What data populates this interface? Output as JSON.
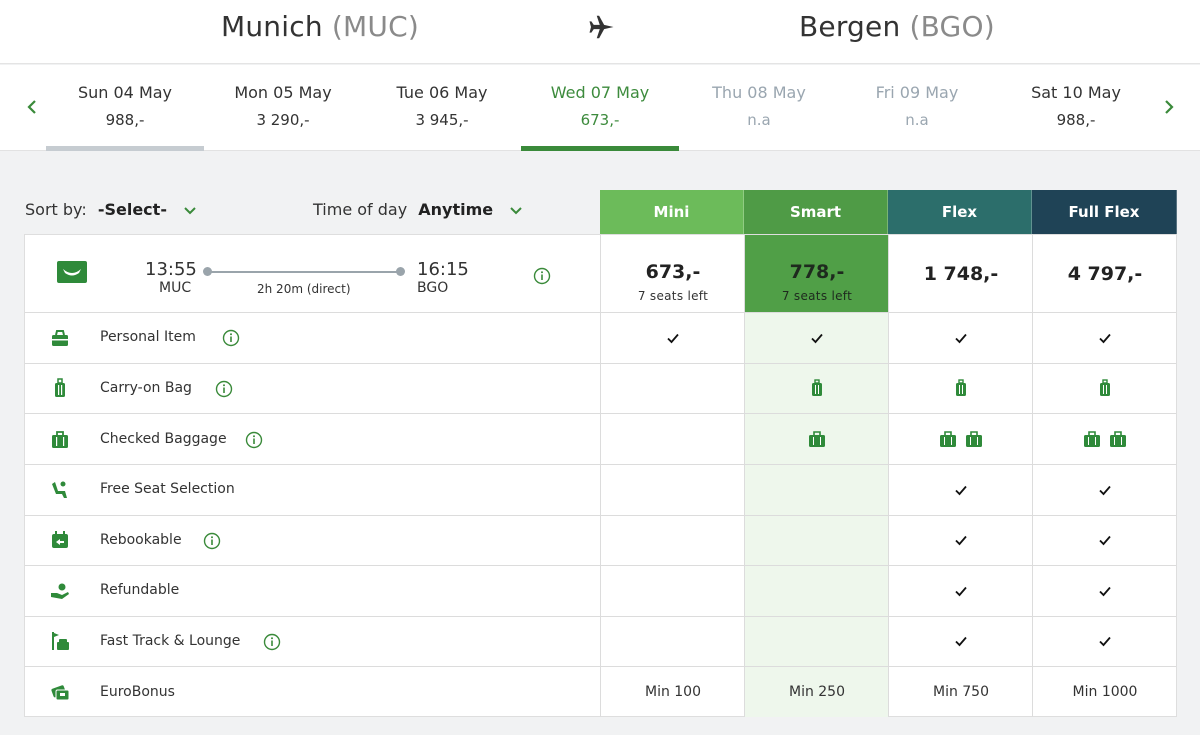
{
  "route": {
    "from_city": "Munich",
    "from_code": "(MUC)",
    "to_city": "Bergen",
    "to_code": "(BGO)",
    "icon": "airplane-icon"
  },
  "dates": [
    {
      "label": "Sun 04 May",
      "price": "988,-",
      "state": "normal"
    },
    {
      "label": "Mon 05 May",
      "price": "3 290,-",
      "state": "normal"
    },
    {
      "label": "Tue 06 May",
      "price": "3 945,-",
      "state": "normal"
    },
    {
      "label": "Wed 07 May",
      "price": "673,-",
      "state": "selected"
    },
    {
      "label": "Thu 08 May",
      "price": "n.a",
      "state": "disabled"
    },
    {
      "label": "Fri 09 May",
      "price": "n.a",
      "state": "disabled"
    },
    {
      "label": "Sat 10 May",
      "price": "988,-",
      "state": "normal"
    }
  ],
  "sort": {
    "label": "Sort by:",
    "value": "-Select-"
  },
  "time_of_day": {
    "label": "Time of day",
    "value": "Anytime"
  },
  "fares": [
    {
      "name": "Mini",
      "color": "#6cbb5a"
    },
    {
      "name": "Smart",
      "color": "#4f9b46"
    },
    {
      "name": "Flex",
      "color": "#2c6e6b"
    },
    {
      "name": "Full Flex",
      "color": "#1f4356"
    }
  ],
  "flight": {
    "depart_time": "13:55",
    "depart_airport": "MUC",
    "arrive_time": "16:15",
    "arrive_airport": "BGO",
    "duration": "2h 20m (direct)",
    "prices": [
      {
        "amount": "673,-",
        "seats": "7 seats left"
      },
      {
        "amount": "778,-",
        "seats": "7 seats left"
      },
      {
        "amount": "1 748,-",
        "seats": ""
      },
      {
        "amount": "4 797,-",
        "seats": ""
      }
    ]
  },
  "features": [
    {
      "label": "Personal Item",
      "icon": "personal-item-icon"
    },
    {
      "label": "Carry-on Bag",
      "icon": "carry-on-bag-icon"
    },
    {
      "label": "Checked Baggage",
      "icon": "checked-baggage-icon"
    },
    {
      "label": "Free Seat Selection",
      "icon": "seat-icon"
    },
    {
      "label": "Rebookable",
      "icon": "rebookable-icon"
    },
    {
      "label": "Refundable",
      "icon": "refundable-icon"
    },
    {
      "label": "Fast Track & Lounge",
      "icon": "lounge-icon"
    },
    {
      "label": "EuroBonus",
      "icon": "eurobonus-icon"
    }
  ],
  "eurobonus": [
    "Min 100",
    "Min 250",
    "Min 750",
    "Min 1000"
  ],
  "colors": {
    "accent_green": "#3a8a3a",
    "smart_light": "#eef7ec",
    "gray_text": "#9aa6b0"
  }
}
